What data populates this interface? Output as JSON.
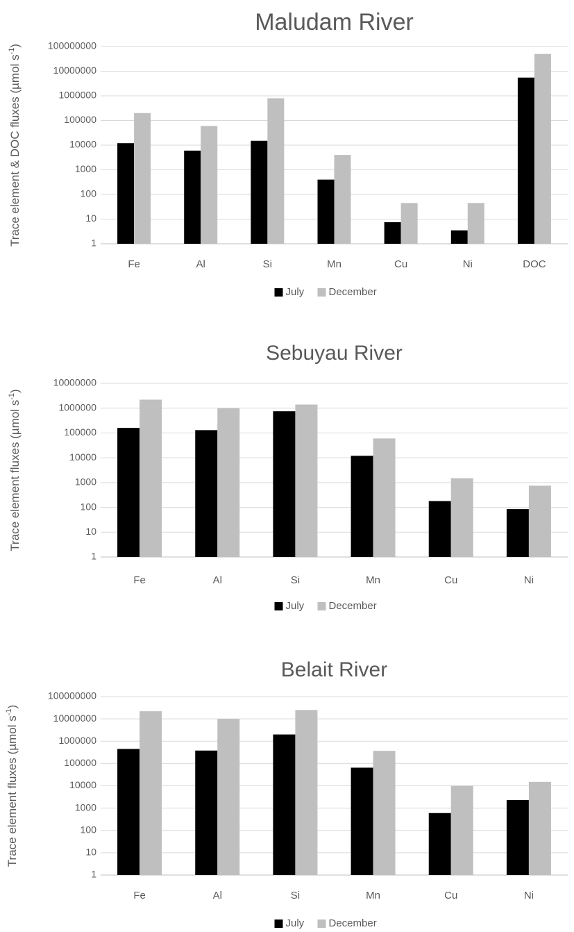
{
  "chart_data": [
    {
      "type": "bar",
      "title": "Maludam River",
      "ylabel": "Trace element & DOC fluxes (µmol s",
      "ylabel_sup": "-1",
      "ylabel_close": ")",
      "yscale": "log",
      "ylim": [
        1,
        100000000
      ],
      "yticks": [
        "1",
        "10",
        "100",
        "1000",
        "10000",
        "100000",
        "1000000",
        "10000000",
        "100000000"
      ],
      "grid": true,
      "legend": "bottom",
      "categories": [
        "Fe",
        "Al",
        "Si",
        "Mn",
        "Cu",
        "Ni",
        "DOC"
      ],
      "series": [
        {
          "name": "July",
          "color": "#000000",
          "values": [
            12000,
            6000,
            15000,
            400,
            7.5,
            3.5,
            5500000
          ]
        },
        {
          "name": "December",
          "color": "#bfbfbf",
          "values": [
            200000,
            60000,
            800000,
            4000,
            45,
            45,
            50000000
          ]
        }
      ]
    },
    {
      "type": "bar",
      "title": "Sebuyau River",
      "ylabel": "Trace element fluxes (µmol s",
      "ylabel_sup": "-1",
      "ylabel_close": ")",
      "yscale": "log",
      "ylim": [
        1,
        10000000
      ],
      "yticks": [
        "1",
        "10",
        "100",
        "1000",
        "10000",
        "100000",
        "1000000",
        "10000000"
      ],
      "grid": true,
      "legend": "bottom",
      "categories": [
        "Fe",
        "Al",
        "Si",
        "Mn",
        "Cu",
        "Ni"
      ],
      "series": [
        {
          "name": "July",
          "color": "#000000",
          "values": [
            160000,
            130000,
            750000,
            12000,
            180,
            85
          ]
        },
        {
          "name": "December",
          "color": "#bfbfbf",
          "values": [
            2200000,
            1000000,
            1400000,
            60000,
            1500,
            750
          ]
        }
      ]
    },
    {
      "type": "bar",
      "title": "Belait River",
      "ylabel": "Trace element fluxes (µmol s",
      "ylabel_sup": "-1",
      "ylabel_close": ")",
      "yscale": "log",
      "ylim": [
        1,
        100000000
      ],
      "yticks": [
        "1",
        "10",
        "100",
        "1000",
        "10000",
        "100000",
        "1000000",
        "10000000",
        "100000000"
      ],
      "grid": true,
      "legend": "bottom",
      "categories": [
        "Fe",
        "Al",
        "Si",
        "Mn",
        "Cu",
        "Ni"
      ],
      "series": [
        {
          "name": "July",
          "color": "#000000",
          "values": [
            450000,
            380000,
            2000000,
            65000,
            600,
            2300
          ]
        },
        {
          "name": "December",
          "color": "#bfbfbf",
          "values": [
            22000000,
            10000000,
            25000000,
            370000,
            10000,
            15000
          ]
        }
      ]
    }
  ]
}
